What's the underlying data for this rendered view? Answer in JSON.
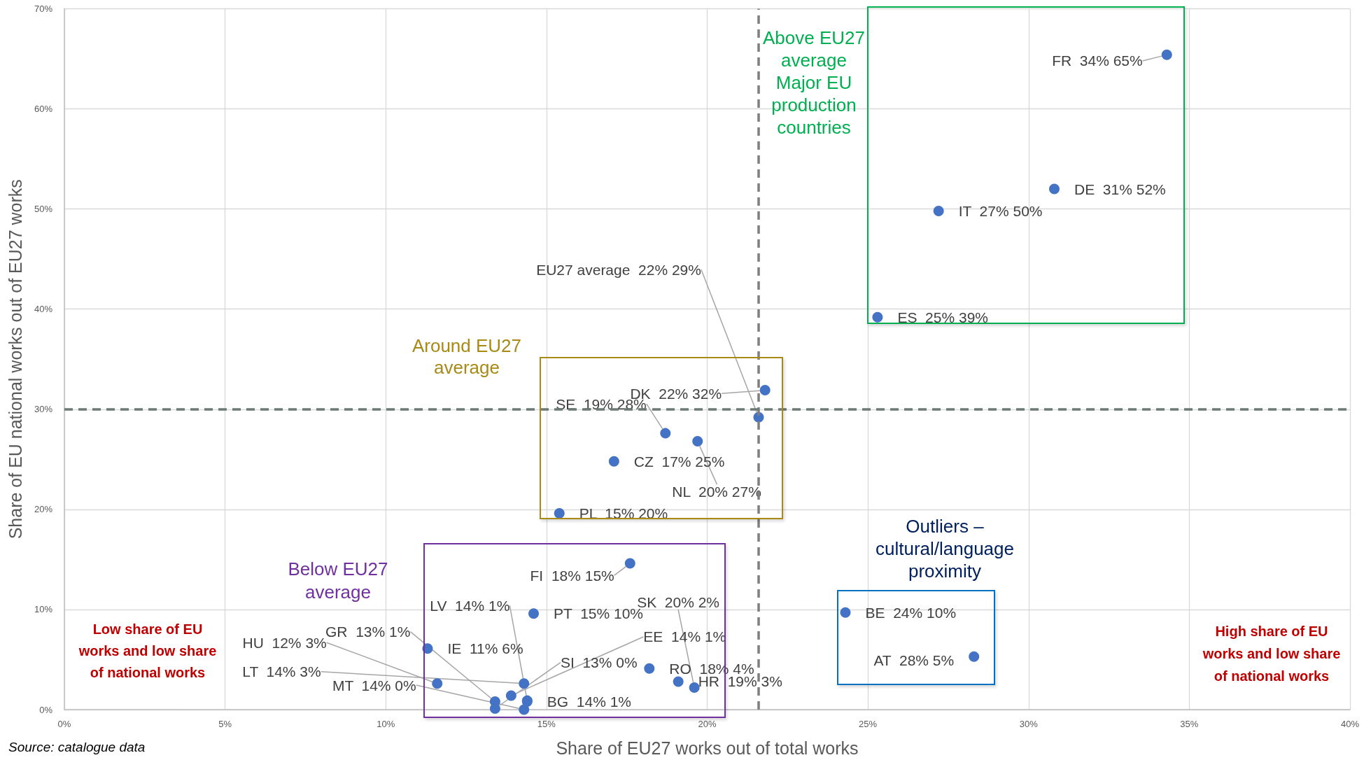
{
  "chart_data": {
    "type": "scatter",
    "xlabel": "Share of EU27 works out of total works",
    "ylabel": "Share of EU national works out of EU27 works",
    "x": [
      34.3,
      30.8,
      27.2,
      25.3,
      21.6,
      21.8,
      18.7,
      19.7,
      17.1,
      15.4,
      17.6,
      14.6,
      11.3,
      11.6,
      13.4,
      14.4,
      14.3,
      14.3,
      13.4,
      13.9,
      14.4,
      18.2,
      19.1,
      19.6,
      24.3,
      28.3
    ],
    "values": [
      65.4,
      52,
      49.8,
      39.2,
      29.2,
      31.9,
      27.6,
      26.8,
      24.8,
      19.6,
      14.6,
      9.6,
      6.1,
      2.6,
      0.8,
      0.9,
      2.6,
      0.0,
      0.1,
      1.4,
      0.8,
      4.1,
      2.8,
      2.2,
      9.7,
      5.3
    ],
    "value_labels": [
      "FR  34% 65%",
      "DE  31% 52%",
      "IT  27% 50%",
      "ES  25% 39%",
      "EU27 average  22% 29%",
      "DK  22% 32%",
      "SE  19% 28%",
      "NL  20% 27%",
      "CZ  17% 25%",
      "PL  15% 20%",
      "FI  18% 15%",
      "PT  15% 10%",
      "IE  11% 6%",
      "HU  12% 3%",
      "GR  13% 1%",
      "LV  14% 1%",
      "LT  14% 3%",
      "MT  14% 0%",
      "SI  13% 0%",
      "EE  14% 1%",
      "BG  14% 1%",
      "RO  18% 4%",
      "HR  19% 3%",
      "SK  20% 2%",
      "BE  24% 10%",
      "AT  28% 5%"
    ],
    "color": "#4472c4",
    "marker": "circle",
    "xlim": [
      0,
      40
    ],
    "xticks": [
      {
        "value": 0,
        "label": "0%"
      },
      {
        "value": 5,
        "label": "5%"
      },
      {
        "value": 10,
        "label": "10%"
      },
      {
        "value": 15,
        "label": "15%"
      },
      {
        "value": 20,
        "label": "20%"
      },
      {
        "value": 25,
        "label": "25%"
      },
      {
        "value": 30,
        "label": "30%"
      },
      {
        "value": 35,
        "label": "35%"
      },
      {
        "value": 40,
        "label": "40%"
      }
    ],
    "ylim": [
      0,
      70
    ],
    "yticks": [
      {
        "value": 0,
        "label": "0%"
      },
      {
        "value": 10,
        "label": "10%"
      },
      {
        "value": 20,
        "label": "20%"
      },
      {
        "value": 30,
        "label": "30%"
      },
      {
        "value": 40,
        "label": "40%"
      },
      {
        "value": 50,
        "label": "50%"
      },
      {
        "value": 60,
        "label": "60%"
      },
      {
        "value": 70,
        "label": "70%"
      }
    ],
    "grid": true,
    "ref_lines": [
      {
        "axis": "x",
        "value": 21.6,
        "color": "#7f7f7f",
        "line_style": "dashed"
      },
      {
        "axis": "y",
        "value": 30,
        "color": "#6b7a72",
        "line_style": "dashed"
      }
    ],
    "annotations": [
      "Above EU27 average Major EU production countries",
      "Around EU27 average",
      "Below EU27 average",
      "Outliers – cultural/language proximity",
      "Low share of EU works and low share of national works",
      "High share of EU works and low share of national works",
      "Source: catalogue data"
    ]
  }
}
